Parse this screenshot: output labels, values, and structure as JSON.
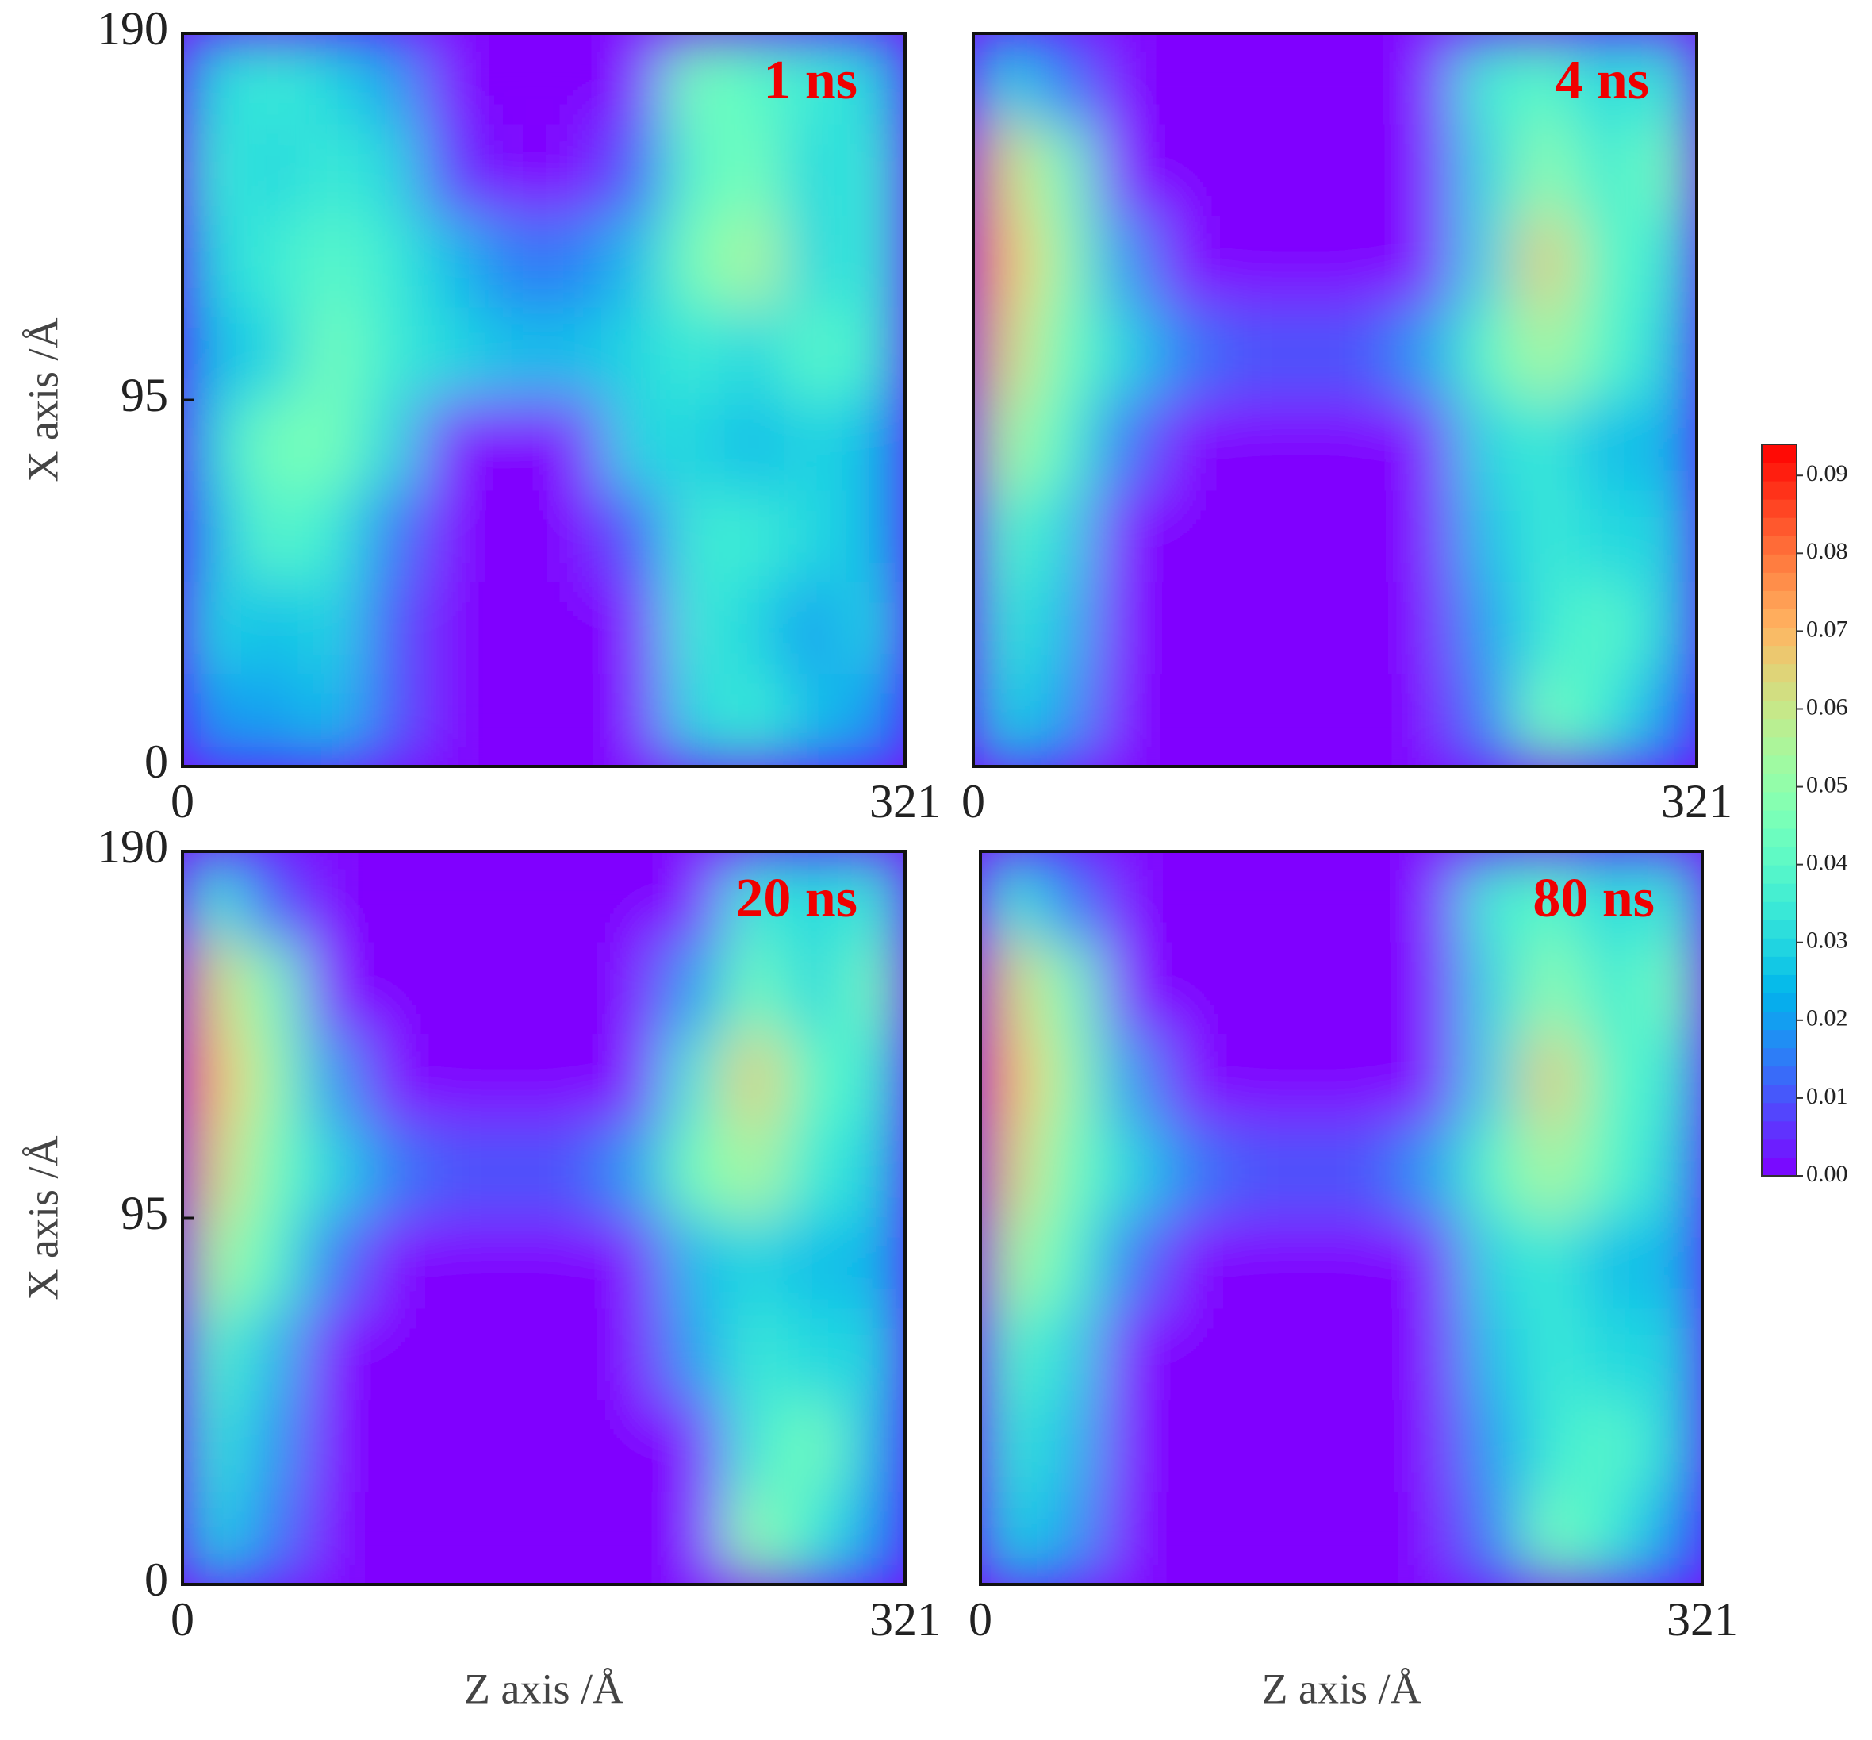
{
  "chart_data": [
    {
      "type": "heatmap",
      "title": "1 ns",
      "ylabel": "X axis /Å",
      "xlim": [
        0,
        321
      ],
      "ylim": [
        0,
        190
      ],
      "xticks": [
        0,
        321
      ],
      "yticks": [
        0,
        95,
        190
      ],
      "values": [
        [
          0.03,
          0.035,
          0.03,
          0.02,
          0,
          0,
          0,
          0,
          0.045,
          0.04,
          0.035,
          0.03
        ],
        [
          0.035,
          0.03,
          0.035,
          0.03,
          0.005,
          0,
          0,
          0.01,
          0.04,
          0.045,
          0.03,
          0.035
        ],
        [
          0.03,
          0.035,
          0.04,
          0.035,
          0.025,
          0.015,
          0.015,
          0.025,
          0.045,
          0.055,
          0.03,
          0.035
        ],
        [
          0.025,
          0.03,
          0.045,
          0.035,
          0.03,
          0.025,
          0.025,
          0.03,
          0.035,
          0.03,
          0.04,
          0.035
        ],
        [
          0.03,
          0.045,
          0.045,
          0.03,
          0,
          0,
          0,
          0.03,
          0.03,
          0.025,
          0.03,
          0.025
        ],
        [
          0.025,
          0.04,
          0.035,
          0.015,
          0,
          0,
          0,
          0.01,
          0.035,
          0.035,
          0.03,
          0.025
        ],
        [
          0.03,
          0.025,
          0.03,
          0.01,
          0,
          0,
          0,
          0,
          0.035,
          0.03,
          0.02,
          0.03
        ],
        [
          0.02,
          0.02,
          0.025,
          0.01,
          0,
          0,
          0,
          0,
          0.03,
          0.035,
          0.025,
          0.02
        ]
      ]
    },
    {
      "type": "heatmap",
      "title": "4 ns",
      "xlim": [
        0,
        321
      ],
      "ylim": [
        0,
        190
      ],
      "xticks": [
        0,
        321
      ],
      "values": [
        [
          0.03,
          0.015,
          0,
          0,
          0,
          0,
          0,
          0,
          0.035,
          0.04,
          0.03,
          0.035
        ],
        [
          0.065,
          0.045,
          0,
          0,
          0,
          0,
          0,
          0,
          0.03,
          0.05,
          0.035,
          0.045
        ],
        [
          0.07,
          0.05,
          0.02,
          0,
          0,
          0,
          0,
          0,
          0.03,
          0.065,
          0.04,
          0.035
        ],
        [
          0.065,
          0.045,
          0.03,
          0.015,
          0.01,
          0.01,
          0.01,
          0.02,
          0.04,
          0.055,
          0.04,
          0.03
        ],
        [
          0.055,
          0.04,
          0.015,
          0,
          0,
          0,
          0,
          0,
          0.03,
          0.035,
          0.025,
          0.025
        ],
        [
          0.04,
          0.03,
          0,
          0,
          0,
          0,
          0,
          0,
          0.025,
          0.035,
          0.03,
          0.03
        ],
        [
          0.035,
          0.025,
          0,
          0,
          0,
          0,
          0,
          0,
          0.02,
          0.035,
          0.04,
          0.03
        ],
        [
          0.03,
          0.02,
          0,
          0,
          0,
          0,
          0,
          0,
          0.015,
          0.045,
          0.035,
          0.02
        ]
      ]
    },
    {
      "type": "heatmap",
      "title": "20 ns",
      "ylabel": "X axis /Å",
      "xlabel": "Z axis /Å",
      "xlim": [
        0,
        321
      ],
      "ylim": [
        0,
        190
      ],
      "xticks": [
        0,
        321
      ],
      "yticks": [
        0,
        95,
        190
      ],
      "values": [
        [
          0.035,
          0.01,
          0,
          0,
          0,
          0,
          0,
          0,
          0,
          0.035,
          0.03,
          0.035
        ],
        [
          0.065,
          0.045,
          0,
          0,
          0,
          0,
          0,
          0,
          0.02,
          0.045,
          0.03,
          0.045
        ],
        [
          0.07,
          0.05,
          0.02,
          0,
          0,
          0,
          0,
          0,
          0.035,
          0.065,
          0.04,
          0.035
        ],
        [
          0.065,
          0.045,
          0.03,
          0.015,
          0.01,
          0.01,
          0.01,
          0.02,
          0.045,
          0.055,
          0.035,
          0.03
        ],
        [
          0.055,
          0.04,
          0.015,
          0,
          0,
          0,
          0,
          0,
          0.025,
          0.03,
          0.025,
          0.025
        ],
        [
          0.04,
          0.025,
          0,
          0,
          0,
          0,
          0,
          0,
          0.02,
          0.035,
          0.03,
          0.03
        ],
        [
          0.035,
          0.02,
          0,
          0,
          0,
          0,
          0,
          0,
          0,
          0.035,
          0.045,
          0.025
        ],
        [
          0.03,
          0.015,
          0,
          0,
          0,
          0,
          0,
          0,
          0,
          0.05,
          0.035,
          0.02
        ]
      ]
    },
    {
      "type": "heatmap",
      "title": "80 ns",
      "xlabel": "Z axis /Å",
      "xlim": [
        0,
        321
      ],
      "ylim": [
        0,
        190
      ],
      "xticks": [
        0,
        321
      ],
      "values": [
        [
          0.035,
          0.015,
          0,
          0,
          0,
          0,
          0,
          0,
          0.035,
          0.04,
          0.03,
          0.035
        ],
        [
          0.065,
          0.045,
          0,
          0,
          0,
          0,
          0,
          0,
          0.03,
          0.05,
          0.035,
          0.045
        ],
        [
          0.07,
          0.05,
          0.02,
          0,
          0,
          0,
          0,
          0,
          0.03,
          0.065,
          0.04,
          0.035
        ],
        [
          0.065,
          0.045,
          0.03,
          0.015,
          0.01,
          0.01,
          0.01,
          0.02,
          0.04,
          0.055,
          0.04,
          0.03
        ],
        [
          0.055,
          0.04,
          0.015,
          0,
          0,
          0,
          0,
          0,
          0.03,
          0.035,
          0.025,
          0.025
        ],
        [
          0.04,
          0.03,
          0,
          0,
          0,
          0,
          0,
          0,
          0.025,
          0.035,
          0.03,
          0.03
        ],
        [
          0.035,
          0.025,
          0,
          0,
          0,
          0,
          0,
          0,
          0.02,
          0.035,
          0.04,
          0.03
        ],
        [
          0.03,
          0.02,
          0,
          0,
          0,
          0,
          0,
          0,
          0.015,
          0.045,
          0.035,
          0.02
        ]
      ]
    }
  ],
  "colorbar": {
    "colormap": "rainbow",
    "lim": [
      0,
      0.094
    ],
    "ticks": [
      {
        "value": 0,
        "label": "0.00"
      },
      {
        "value": 0.01,
        "label": "0.01"
      },
      {
        "value": 0.02,
        "label": "0.02"
      },
      {
        "value": 0.03,
        "label": "0.03"
      },
      {
        "value": 0.04,
        "label": "0.04"
      },
      {
        "value": 0.05,
        "label": "0.05"
      },
      {
        "value": 0.06,
        "label": "0.06"
      },
      {
        "value": 0.07,
        "label": "0.07"
      },
      {
        "value": 0.08,
        "label": "0.08"
      },
      {
        "value": 0.09,
        "label": "0.09"
      }
    ]
  }
}
